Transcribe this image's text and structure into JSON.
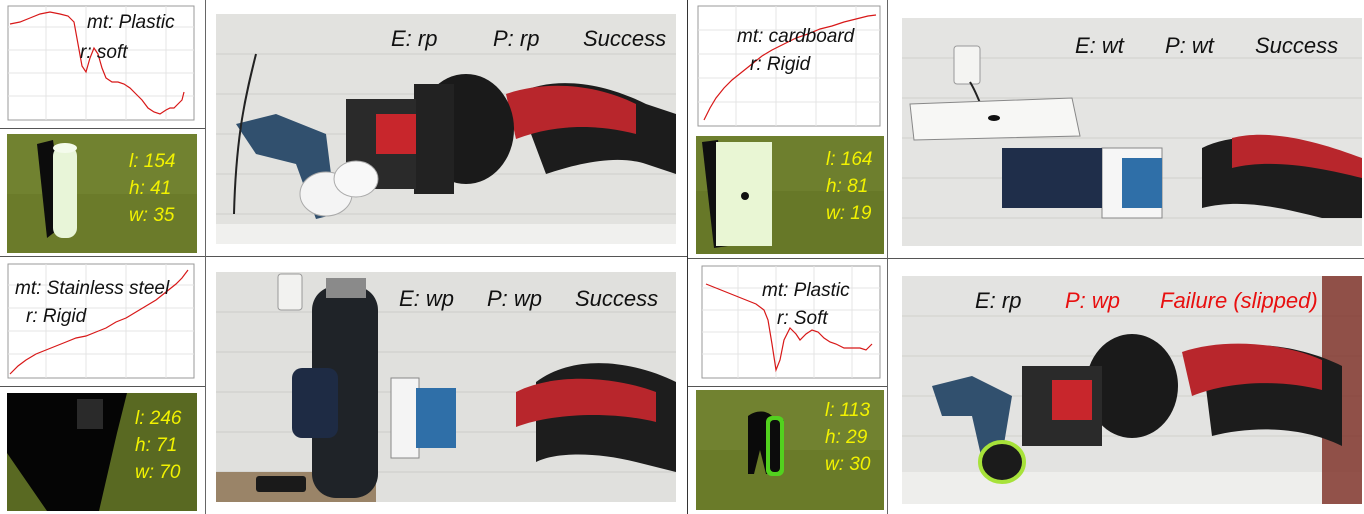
{
  "colors": {
    "curve": "#d81818",
    "depth_text": "#f2f200",
    "label_text": "#111111",
    "failure_text": "#e81010",
    "robot_red": "#b8262c",
    "depth_bg": "#6a7a2a"
  },
  "panels": [
    {
      "material": "mt: Plastic",
      "rigidity": "r:  soft",
      "dims": {
        "l": "l: 154",
        "h": "h: 41",
        "w": "w: 35"
      },
      "expected": "E: rp",
      "predicted": "P: rp",
      "result": "Success",
      "predicted_color": "#111111",
      "result_color": "#111111"
    },
    {
      "material": "mt: cardboard",
      "rigidity": "r:  Rigid",
      "dims": {
        "l": "l: 164",
        "h": "h: 81",
        "w": "w: 19"
      },
      "expected": "E: wt",
      "predicted": "P: wt",
      "result": "Success",
      "predicted_color": "#111111",
      "result_color": "#111111"
    },
    {
      "material": "mt: Stainless steel",
      "rigidity": "r:  Rigid",
      "dims": {
        "l": "l: 246",
        "h": "h: 71",
        "w": "w: 70"
      },
      "expected": "E: wp",
      "predicted": "P: wp",
      "result": "Success",
      "predicted_color": "#111111",
      "result_color": "#111111"
    },
    {
      "material": "mt: Plastic",
      "rigidity": "r:  Soft",
      "dims": {
        "l": "l: 113",
        "h": "h: 29",
        "w": "w: 30"
      },
      "expected": "E: rp",
      "predicted": "P: wp",
      "result": "Failure (slipped)",
      "predicted_color": "#e81010",
      "result_color": "#e81010"
    }
  ]
}
